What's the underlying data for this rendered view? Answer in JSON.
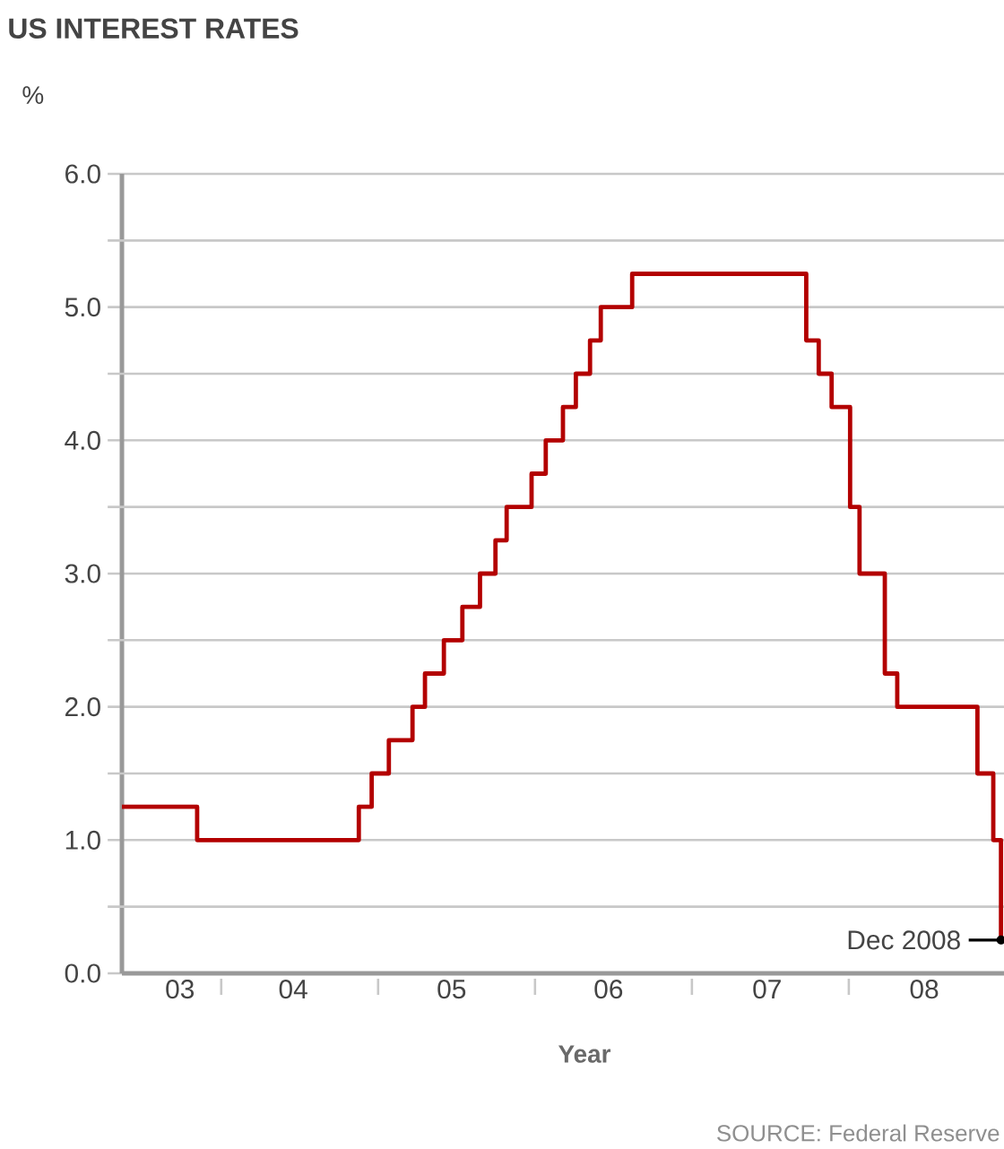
{
  "chart_data": {
    "type": "step",
    "title": "US INTEREST RATES",
    "ylabel": "%",
    "xlabel": "Year",
    "x": [
      "2003-05-15",
      "2003-11-06",
      "2004-11-17",
      "2004-12-17",
      "2005-01-26",
      "2005-03-22",
      "2005-04-20",
      "2005-06-03",
      "2005-07-16",
      "2005-08-26",
      "2005-10-01",
      "2005-10-27",
      "2005-12-24",
      "2006-01-26",
      "2006-03-07",
      "2006-04-06",
      "2006-05-09",
      "2006-06-03",
      "2006-08-15",
      "2007-09-24",
      "2007-10-23",
      "2007-11-22",
      "2008-01-04",
      "2008-01-26",
      "2008-03-25",
      "2008-04-23",
      "2008-10-27",
      "2008-12-03",
      "2008-12-21",
      "2008-12-28"
    ],
    "series": [
      {
        "color": "#b30000",
        "values": [
          1.25,
          1.0,
          1.25,
          1.5,
          1.75,
          2.0,
          2.25,
          2.5,
          2.75,
          3.0,
          3.25,
          3.5,
          3.75,
          4.0,
          4.25,
          4.5,
          4.75,
          5.0,
          5.25,
          4.75,
          4.5,
          4.25,
          3.5,
          3.0,
          2.25,
          2.0,
          1.5,
          1.0,
          0.25,
          0.25
        ]
      }
    ],
    "xlim": [
      "2003-05-15",
      "2008-12-28"
    ],
    "ylim": [
      0,
      6
    ],
    "xticks": [
      {
        "value": "2003-09-27",
        "label": "03"
      },
      {
        "value": "2004-06-17",
        "label": "04"
      },
      {
        "value": "2005-06-21",
        "label": "05"
      },
      {
        "value": "2006-06-21",
        "label": "06"
      },
      {
        "value": "2007-06-25",
        "label": "07"
      },
      {
        "value": "2008-06-25",
        "label": "08"
      },
      {
        "value": "2004-01-01",
        "label": null
      },
      {
        "value": "2005-01-01",
        "label": null
      },
      {
        "value": "2006-01-01",
        "label": null
      },
      {
        "value": "2007-01-01",
        "label": null
      },
      {
        "value": "2008-01-01",
        "label": null
      }
    ],
    "yticks": [
      {
        "value": 0,
        "label": "0.0"
      },
      {
        "value": 0.5,
        "label": null
      },
      {
        "value": 1,
        "label": "1.0"
      },
      {
        "value": 1.5,
        "label": null
      },
      {
        "value": 2,
        "label": "2.0"
      },
      {
        "value": 2.5,
        "label": null
      },
      {
        "value": 3,
        "label": "3.0"
      },
      {
        "value": 3.5,
        "label": null
      },
      {
        "value": 4,
        "label": "4.0"
      },
      {
        "value": 4.5,
        "label": null
      },
      {
        "value": 5,
        "label": "5.0"
      },
      {
        "value": 5.5,
        "label": null
      },
      {
        "value": 6,
        "label": "6.0"
      }
    ],
    "grid": "y",
    "annotations": [
      {
        "text": "Dec 2008",
        "x": "2008-12-21",
        "y": 0.25
      },
      "SOURCE: Federal Reserve"
    ]
  }
}
